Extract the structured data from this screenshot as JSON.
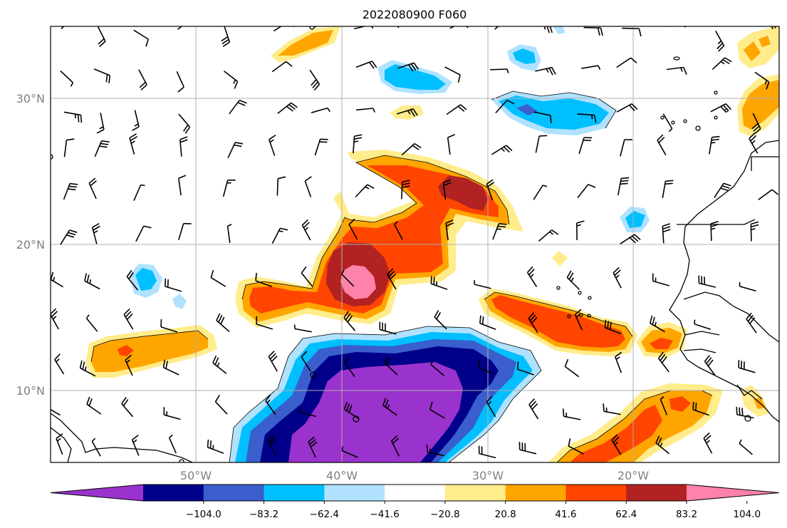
{
  "title": "2022080900 F060",
  "axes": {
    "x_ticks": [
      "50°W",
      "40°W",
      "30°W",
      "20°W"
    ],
    "y_ticks": [
      "30°N",
      "20°N",
      "10°N"
    ],
    "grid": true
  },
  "colorbar": {
    "ticks": [
      "−104.0",
      "−83.2",
      "−62.4",
      "−41.6",
      "−20.8",
      "20.8",
      "41.6",
      "62.4",
      "83.2",
      "104.0"
    ],
    "colors": [
      "#9a32cd",
      "#00008b",
      "#3a5fcd",
      "#00bfff",
      "#b0e2ff",
      "#ffffff",
      "#ffec8b",
      "#ffa500",
      "#ff4500",
      "#b22222",
      "#ff82ab"
    ],
    "extend": "both"
  },
  "colors": {
    "coastline": "#000000",
    "grid": "#b0b0b0",
    "barbs": "#000000"
  }
}
